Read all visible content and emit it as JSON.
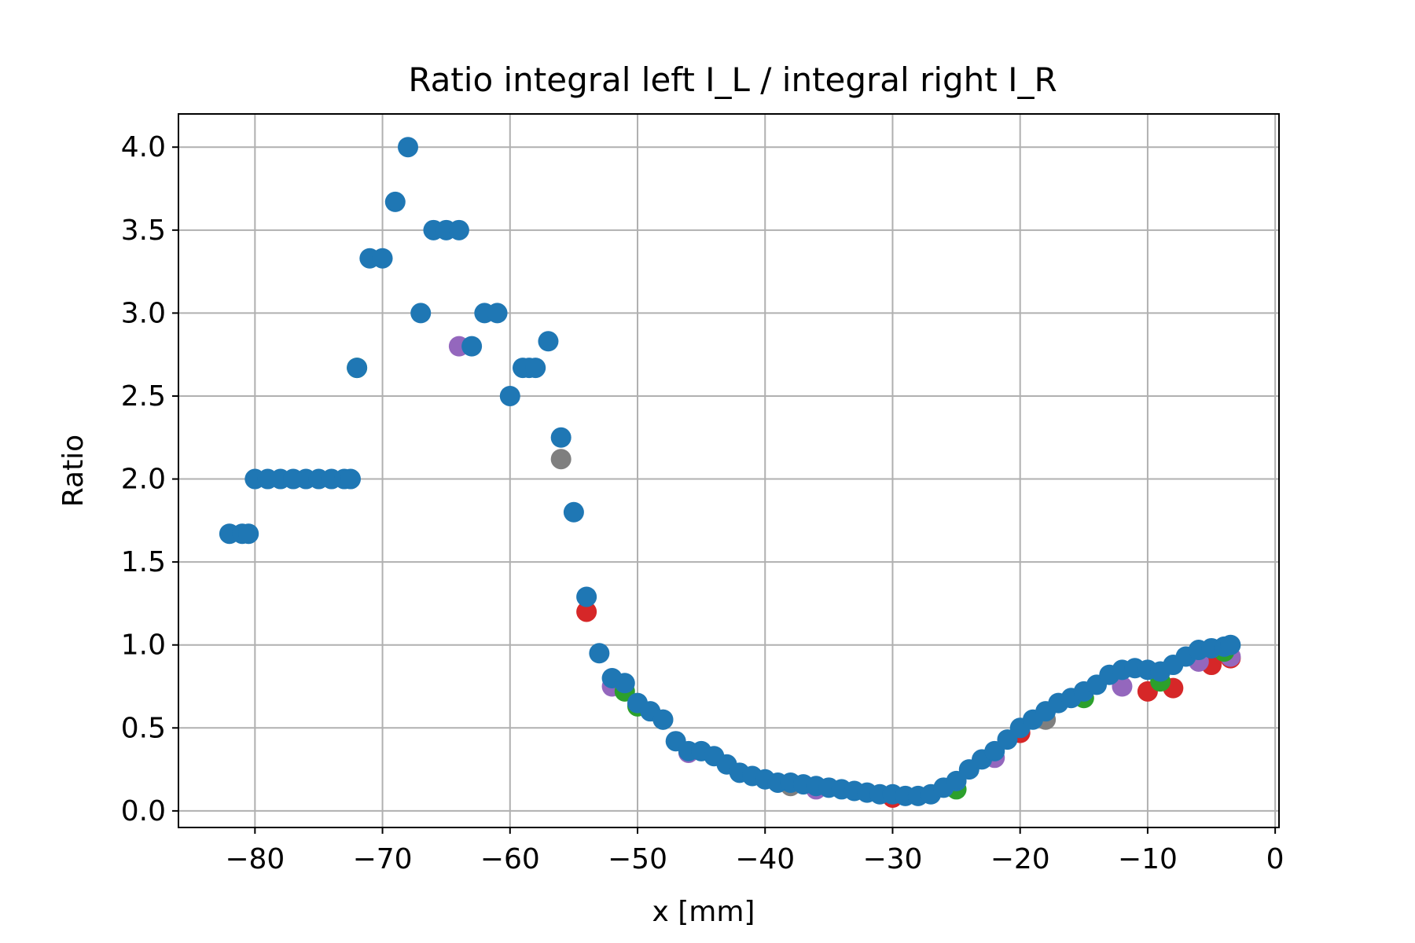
{
  "chart_data": {
    "type": "scatter",
    "title": "Ratio integral left  I_L / integral right I_R",
    "xlabel": "x [mm]",
    "ylabel": "Ratio",
    "xlim": [
      -86,
      0.3
    ],
    "ylim": [
      -0.1,
      4.2
    ],
    "xticks": [
      -80,
      -70,
      -60,
      -50,
      -40,
      -30,
      -20,
      -10,
      0
    ],
    "yticks": [
      0.0,
      0.5,
      1.0,
      1.5,
      2.0,
      2.5,
      3.0,
      3.5,
      4.0
    ],
    "grid": true,
    "series": [
      {
        "color": "#1f77b4",
        "x": [
          -82,
          -81,
          -80.5,
          -80,
          -79,
          -78,
          -77,
          -76,
          -75,
          -74,
          -73,
          -72.5,
          -72,
          -71,
          -70,
          -69,
          -68,
          -67,
          -66,
          -65,
          -64,
          -63,
          -62,
          -61,
          -60,
          -59,
          -58.5,
          -58,
          -57,
          -56,
          -55,
          -54,
          -53,
          -52,
          -51,
          -50,
          -49,
          -48,
          -47,
          -46,
          -45,
          -44,
          -43,
          -42,
          -41,
          -40,
          -39,
          -38,
          -37,
          -36,
          -35,
          -34,
          -33,
          -32,
          -31,
          -30,
          -29,
          -28,
          -27,
          -26,
          -25,
          -24,
          -23,
          -22,
          -21,
          -20,
          -19,
          -18,
          -17,
          -16,
          -15,
          -14,
          -13,
          -12,
          -11,
          -10,
          -9,
          -8,
          -7,
          -6,
          -5,
          -4,
          -3.5
        ],
        "y": [
          1.67,
          1.67,
          1.67,
          2.0,
          2.0,
          2.0,
          2.0,
          2.0,
          2.0,
          2.0,
          2.0,
          2.0,
          2.67,
          3.33,
          3.33,
          3.67,
          4.0,
          3.0,
          3.5,
          3.5,
          3.5,
          2.8,
          3.0,
          3.0,
          2.5,
          2.67,
          2.67,
          2.67,
          2.83,
          2.25,
          1.8,
          1.29,
          0.95,
          0.8,
          0.77,
          0.65,
          0.6,
          0.55,
          0.42,
          0.36,
          0.36,
          0.33,
          0.28,
          0.23,
          0.21,
          0.19,
          0.17,
          0.17,
          0.16,
          0.15,
          0.14,
          0.13,
          0.12,
          0.11,
          0.1,
          0.1,
          0.09,
          0.09,
          0.1,
          0.14,
          0.18,
          0.25,
          0.31,
          0.36,
          0.43,
          0.5,
          0.55,
          0.6,
          0.65,
          0.68,
          0.72,
          0.76,
          0.82,
          0.85,
          0.86,
          0.85,
          0.84,
          0.88,
          0.93,
          0.97,
          0.98,
          0.99,
          1.0
        ]
      },
      {
        "color": "#d62728",
        "x": [
          -54,
          -50,
          -30,
          -20,
          -10,
          -8,
          -5,
          -3.5
        ],
        "y": [
          1.2,
          0.64,
          0.08,
          0.47,
          0.72,
          0.74,
          0.88,
          0.92
        ]
      },
      {
        "color": "#9467bd",
        "x": [
          -64,
          -52,
          -46,
          -36,
          -22,
          -12,
          -6,
          -3.5
        ],
        "y": [
          2.8,
          0.75,
          0.35,
          0.13,
          0.32,
          0.75,
          0.9,
          0.93
        ]
      },
      {
        "color": "#7f7f7f",
        "x": [
          -56,
          -48,
          -38,
          -18
        ],
        "y": [
          2.12,
          0.55,
          0.15,
          0.55
        ]
      },
      {
        "color": "#2ca02c",
        "x": [
          -72,
          -51,
          -50,
          -25,
          -15,
          -9,
          -4
        ],
        "y": [
          2.67,
          0.72,
          0.63,
          0.13,
          0.68,
          0.78,
          0.96
        ]
      }
    ]
  }
}
